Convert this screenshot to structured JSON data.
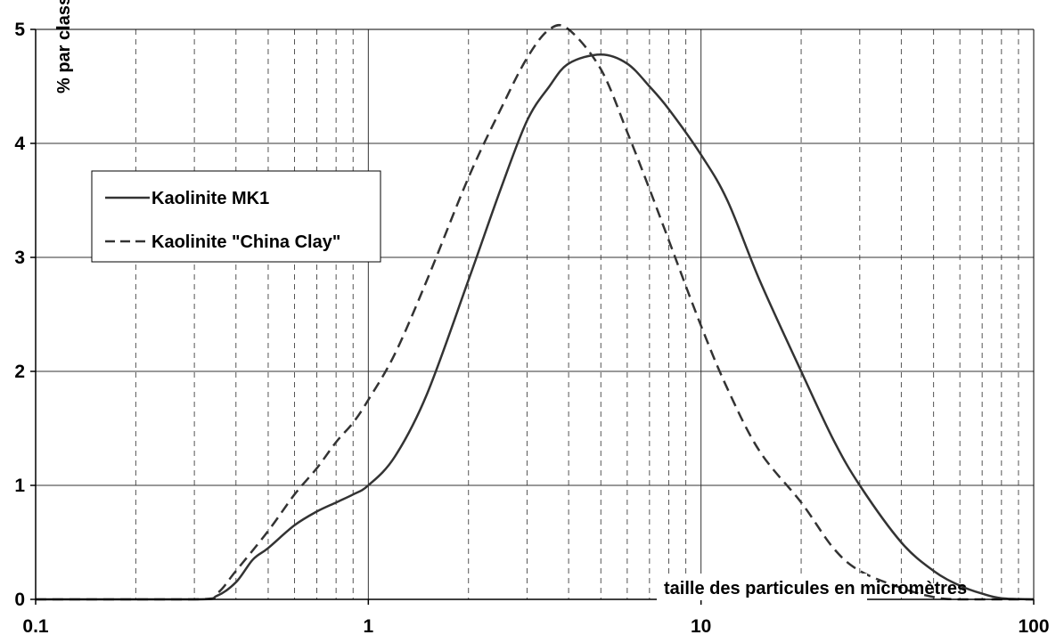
{
  "chart_data": {
    "type": "line",
    "title": "",
    "xlabel": "taille des particules en micromètres",
    "ylabel": "% par classe",
    "x_scale": "log",
    "xlim": [
      0.1,
      100
    ],
    "ylim": [
      0,
      5
    ],
    "x_ticks": [
      "0.1",
      "1",
      "10",
      "100"
    ],
    "y_ticks": [
      "0",
      "1",
      "2",
      "3",
      "4",
      "5"
    ],
    "grid": {
      "vertical_minor": "dashed",
      "vertical_major": "solid",
      "horizontal": "solid"
    },
    "legend": {
      "placement": "top-left"
    },
    "series": [
      {
        "name": "Kaolinite MK1",
        "style": "solid",
        "color": "#333333",
        "points": [
          [
            0.1,
            0
          ],
          [
            0.3,
            0
          ],
          [
            0.35,
            0.03
          ],
          [
            0.4,
            0.15
          ],
          [
            0.45,
            0.35
          ],
          [
            0.5,
            0.45
          ],
          [
            0.6,
            0.65
          ],
          [
            0.7,
            0.77
          ],
          [
            0.8,
            0.85
          ],
          [
            0.9,
            0.92
          ],
          [
            1.0,
            1.0
          ],
          [
            1.2,
            1.25
          ],
          [
            1.5,
            1.8
          ],
          [
            2.0,
            2.8
          ],
          [
            2.5,
            3.6
          ],
          [
            3.0,
            4.2
          ],
          [
            3.5,
            4.5
          ],
          [
            4.0,
            4.7
          ],
          [
            5.0,
            4.78
          ],
          [
            6.0,
            4.7
          ],
          [
            7.0,
            4.5
          ],
          [
            8.0,
            4.3
          ],
          [
            10.0,
            3.9
          ],
          [
            12.0,
            3.5
          ],
          [
            15.0,
            2.8
          ],
          [
            20.0,
            2.0
          ],
          [
            25.0,
            1.4
          ],
          [
            30.0,
            1.0
          ],
          [
            40.0,
            0.5
          ],
          [
            50.0,
            0.25
          ],
          [
            60.0,
            0.12
          ],
          [
            70.0,
            0.05
          ],
          [
            80.0,
            0.01
          ],
          [
            100.0,
            0
          ]
        ]
      },
      {
        "name": "Kaolinite \"China Clay\"",
        "style": "dashed",
        "color": "#333333",
        "points": [
          [
            0.1,
            0
          ],
          [
            0.3,
            0
          ],
          [
            0.35,
            0.05
          ],
          [
            0.4,
            0.25
          ],
          [
            0.5,
            0.6
          ],
          [
            0.6,
            0.92
          ],
          [
            0.7,
            1.15
          ],
          [
            0.8,
            1.38
          ],
          [
            0.9,
            1.55
          ],
          [
            1.0,
            1.75
          ],
          [
            1.2,
            2.15
          ],
          [
            1.5,
            2.8
          ],
          [
            2.0,
            3.7
          ],
          [
            2.5,
            4.3
          ],
          [
            3.0,
            4.75
          ],
          [
            3.5,
            5.0
          ],
          [
            4.0,
            5.0
          ],
          [
            5.0,
            4.65
          ],
          [
            6.0,
            4.1
          ],
          [
            7.0,
            3.6
          ],
          [
            8.0,
            3.15
          ],
          [
            10.0,
            2.4
          ],
          [
            12.0,
            1.85
          ],
          [
            15.0,
            1.3
          ],
          [
            20.0,
            0.85
          ],
          [
            25.0,
            0.45
          ],
          [
            30.0,
            0.25
          ],
          [
            40.0,
            0.1
          ],
          [
            50.0,
            0.02
          ],
          [
            60.0,
            0
          ],
          [
            100.0,
            0
          ]
        ]
      }
    ]
  }
}
